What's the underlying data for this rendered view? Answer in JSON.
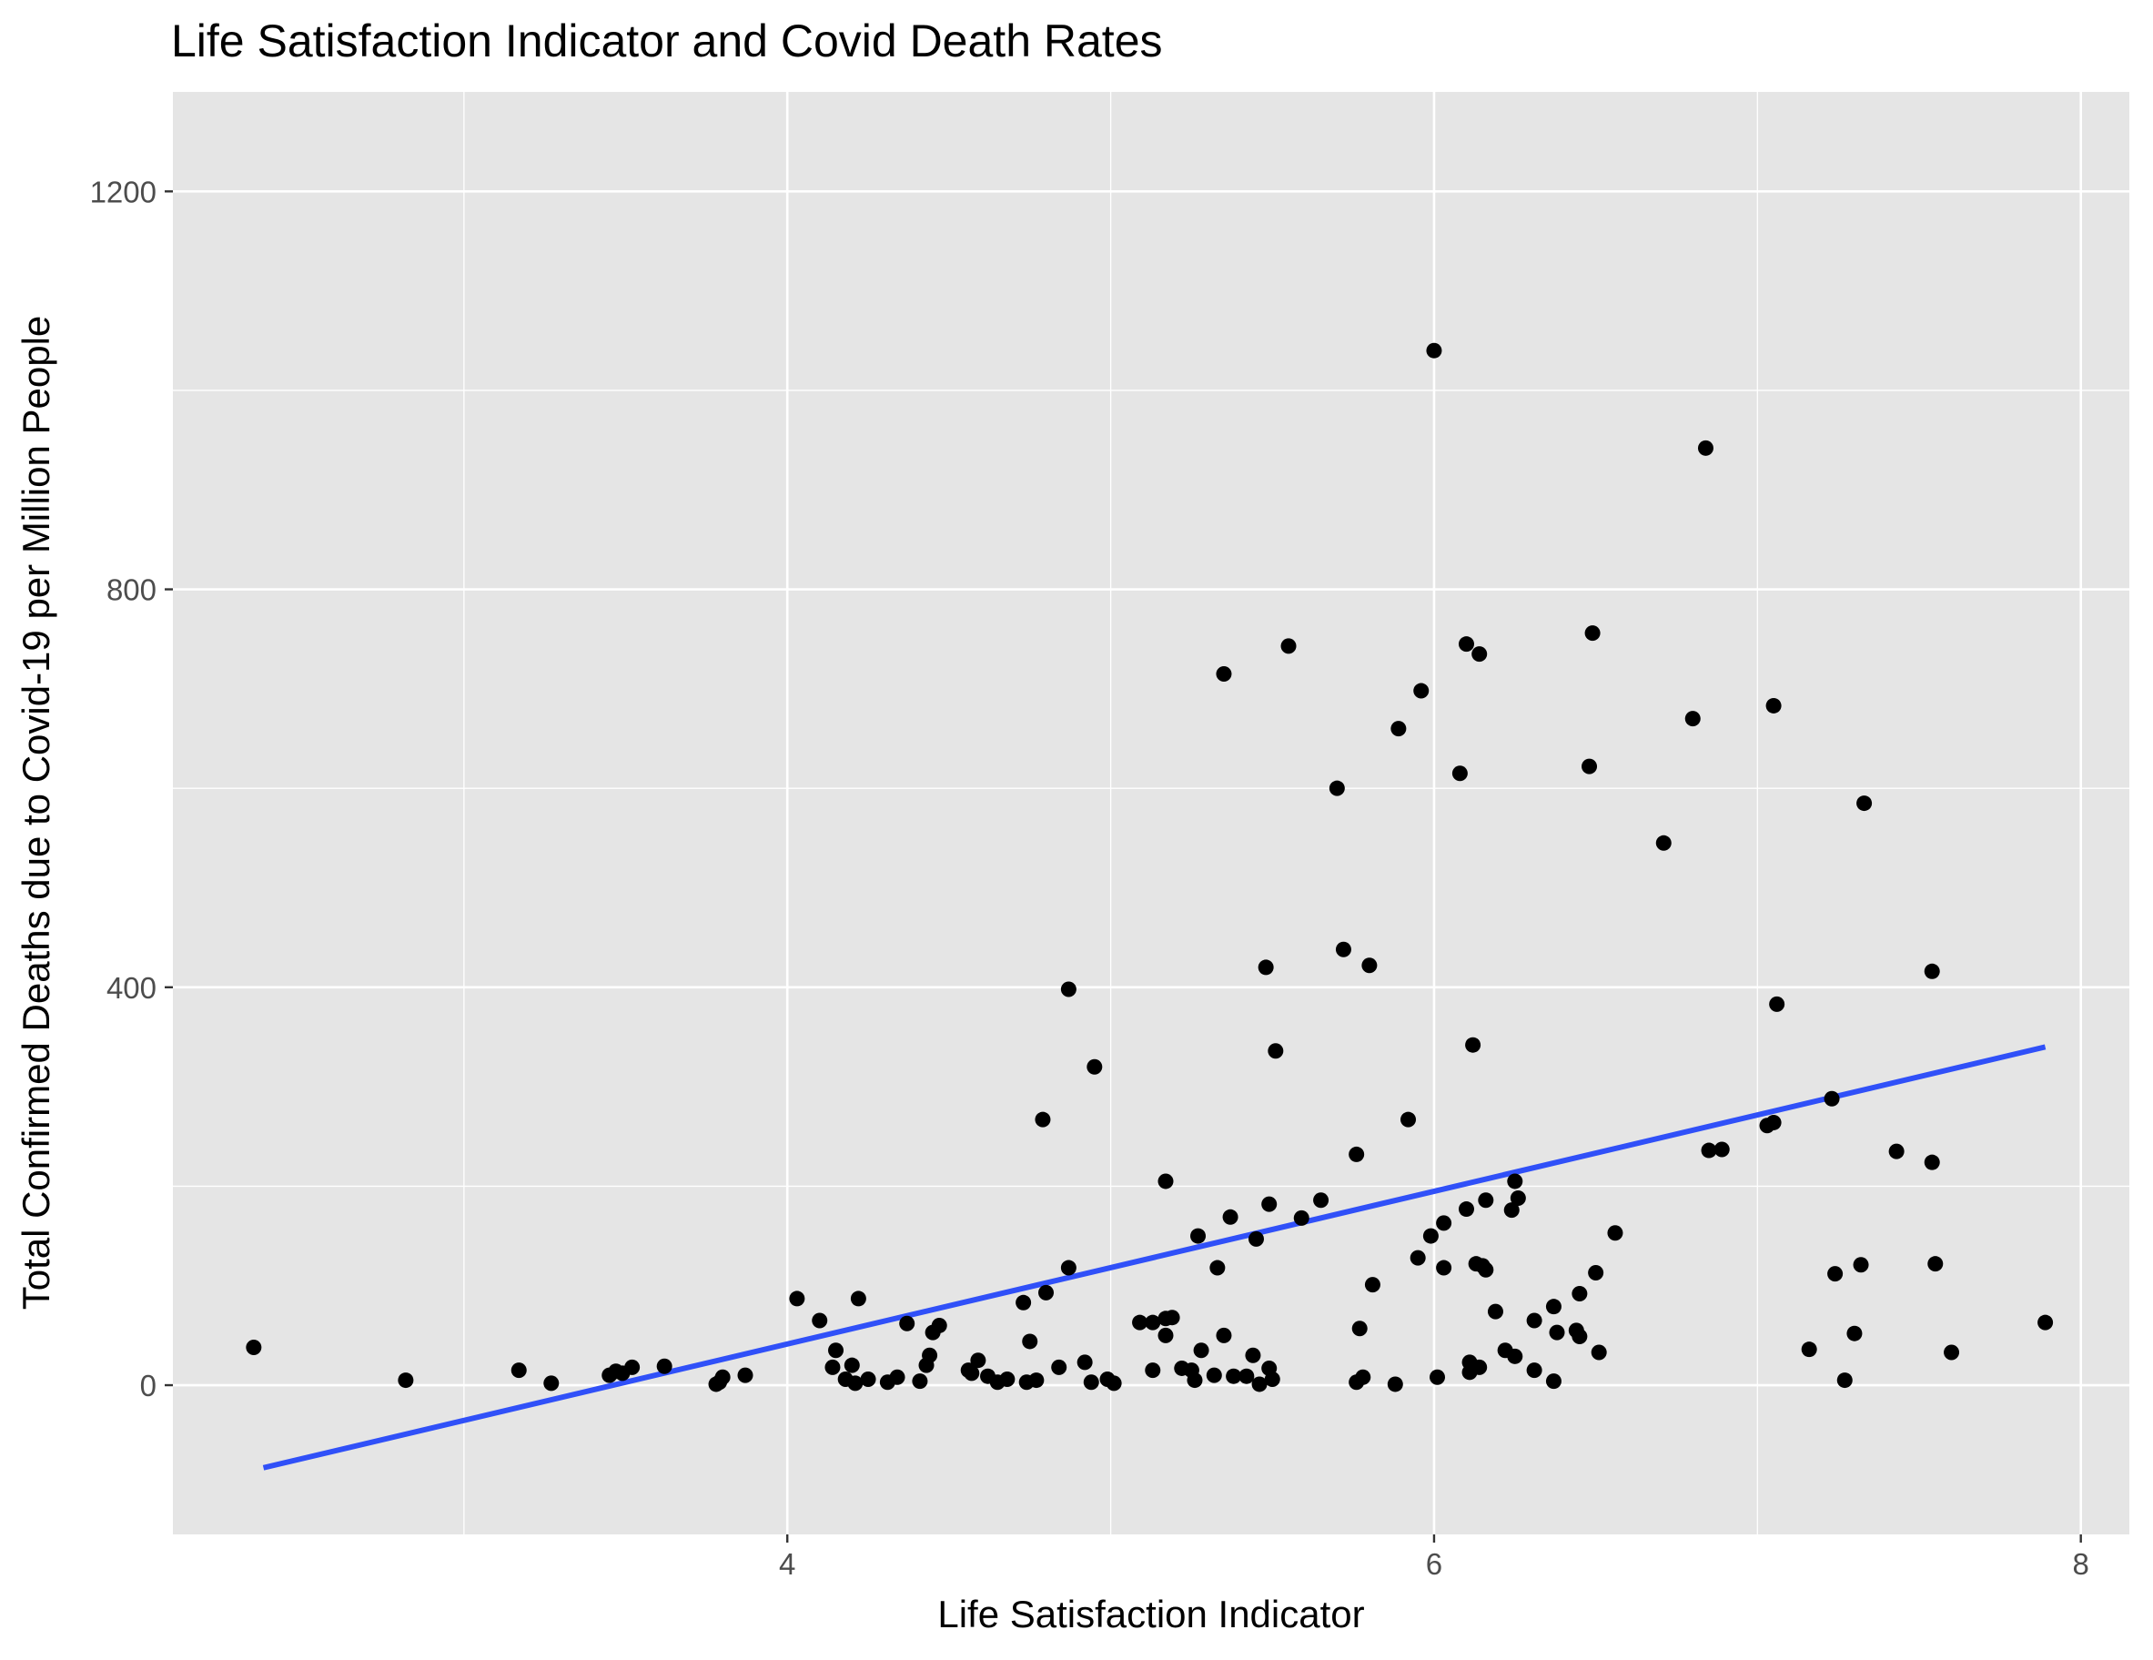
{
  "chart_data": {
    "type": "scatter",
    "title": "Life Satisfaction Indicator and Covid Death Rates",
    "xlabel": "Life Satisfaction Indicator",
    "ylabel": "Total Confirmed Deaths due to Covid-19 per Million People",
    "xlim": [
      2.1,
      8.15
    ],
    "ylim": [
      -150,
      1300
    ],
    "x_ticks": [
      4,
      6,
      8
    ],
    "y_ticks": [
      0,
      400,
      800,
      1200
    ],
    "x_tick_labels": [
      "4",
      "6",
      "8"
    ],
    "y_tick_labels": [
      "0",
      "400",
      "800",
      "1200"
    ],
    "grid": true,
    "colors": {
      "panel": "#E5E5E5",
      "grid": "#FFFFFF",
      "points": "#000000",
      "fit_line": "#3050F8"
    },
    "fit_line": {
      "x": [
        2.38,
        7.89
      ],
      "y": [
        -83,
        340
      ]
    },
    "points": [
      {
        "x": 2.35,
        "y": 38
      },
      {
        "x": 2.82,
        "y": 5
      },
      {
        "x": 3.17,
        "y": 15
      },
      {
        "x": 3.27,
        "y": 2
      },
      {
        "x": 3.45,
        "y": 10
      },
      {
        "x": 3.47,
        "y": 14
      },
      {
        "x": 3.49,
        "y": 12
      },
      {
        "x": 3.52,
        "y": 18
      },
      {
        "x": 3.62,
        "y": 19
      },
      {
        "x": 3.78,
        "y": 1
      },
      {
        "x": 3.79,
        "y": 3
      },
      {
        "x": 3.8,
        "y": 8
      },
      {
        "x": 3.87,
        "y": 10
      },
      {
        "x": 4.03,
        "y": 87
      },
      {
        "x": 4.1,
        "y": 65
      },
      {
        "x": 4.14,
        "y": 18
      },
      {
        "x": 4.15,
        "y": 35
      },
      {
        "x": 4.18,
        "y": 6
      },
      {
        "x": 4.2,
        "y": 20
      },
      {
        "x": 4.21,
        "y": 2
      },
      {
        "x": 4.22,
        "y": 87
      },
      {
        "x": 4.25,
        "y": 6
      },
      {
        "x": 4.31,
        "y": 3
      },
      {
        "x": 4.34,
        "y": 8
      },
      {
        "x": 4.37,
        "y": 62
      },
      {
        "x": 4.41,
        "y": 4
      },
      {
        "x": 4.43,
        "y": 20
      },
      {
        "x": 4.44,
        "y": 30
      },
      {
        "x": 4.45,
        "y": 53
      },
      {
        "x": 4.47,
        "y": 60
      },
      {
        "x": 4.56,
        "y": 15
      },
      {
        "x": 4.57,
        "y": 12
      },
      {
        "x": 4.59,
        "y": 25
      },
      {
        "x": 4.62,
        "y": 9
      },
      {
        "x": 4.65,
        "y": 3
      },
      {
        "x": 4.68,
        "y": 6
      },
      {
        "x": 4.73,
        "y": 83
      },
      {
        "x": 4.74,
        "y": 3
      },
      {
        "x": 4.75,
        "y": 44
      },
      {
        "x": 4.77,
        "y": 5
      },
      {
        "x": 4.79,
        "y": 267
      },
      {
        "x": 4.8,
        "y": 93
      },
      {
        "x": 4.84,
        "y": 18
      },
      {
        "x": 4.87,
        "y": 398
      },
      {
        "x": 4.87,
        "y": 118
      },
      {
        "x": 4.92,
        "y": 23
      },
      {
        "x": 4.94,
        "y": 3
      },
      {
        "x": 4.95,
        "y": 320
      },
      {
        "x": 4.99,
        "y": 6
      },
      {
        "x": 5.01,
        "y": 2
      },
      {
        "x": 5.09,
        "y": 63
      },
      {
        "x": 5.13,
        "y": 63
      },
      {
        "x": 5.13,
        "y": 15
      },
      {
        "x": 5.17,
        "y": 205
      },
      {
        "x": 5.17,
        "y": 50
      },
      {
        "x": 5.17,
        "y": 67
      },
      {
        "x": 5.19,
        "y": 68
      },
      {
        "x": 5.22,
        "y": 17
      },
      {
        "x": 5.25,
        "y": 15
      },
      {
        "x": 5.26,
        "y": 5
      },
      {
        "x": 5.27,
        "y": 150
      },
      {
        "x": 5.28,
        "y": 35
      },
      {
        "x": 5.32,
        "y": 10
      },
      {
        "x": 5.33,
        "y": 118
      },
      {
        "x": 5.35,
        "y": 50
      },
      {
        "x": 5.35,
        "y": 715
      },
      {
        "x": 5.37,
        "y": 169
      },
      {
        "x": 5.38,
        "y": 9
      },
      {
        "x": 5.42,
        "y": 9
      },
      {
        "x": 5.44,
        "y": 30
      },
      {
        "x": 5.45,
        "y": 147
      },
      {
        "x": 5.46,
        "y": 1
      },
      {
        "x": 5.48,
        "y": 420
      },
      {
        "x": 5.49,
        "y": 182
      },
      {
        "x": 5.49,
        "y": 17
      },
      {
        "x": 5.5,
        "y": 6
      },
      {
        "x": 5.51,
        "y": 336
      },
      {
        "x": 5.55,
        "y": 743
      },
      {
        "x": 5.59,
        "y": 168
      },
      {
        "x": 5.65,
        "y": 186
      },
      {
        "x": 5.7,
        "y": 600
      },
      {
        "x": 5.72,
        "y": 438
      },
      {
        "x": 5.76,
        "y": 232
      },
      {
        "x": 5.76,
        "y": 3
      },
      {
        "x": 5.77,
        "y": 57
      },
      {
        "x": 5.78,
        "y": 8
      },
      {
        "x": 5.8,
        "y": 422
      },
      {
        "x": 5.81,
        "y": 101
      },
      {
        "x": 5.88,
        "y": 1
      },
      {
        "x": 5.89,
        "y": 660
      },
      {
        "x": 5.92,
        "y": 267
      },
      {
        "x": 5.95,
        "y": 128
      },
      {
        "x": 5.96,
        "y": 698
      },
      {
        "x": 5.99,
        "y": 150
      },
      {
        "x": 6.0,
        "y": 1040
      },
      {
        "x": 6.01,
        "y": 8
      },
      {
        "x": 6.03,
        "y": 163
      },
      {
        "x": 6.03,
        "y": 118
      },
      {
        "x": 6.08,
        "y": 615
      },
      {
        "x": 6.1,
        "y": 177
      },
      {
        "x": 6.1,
        "y": 745
      },
      {
        "x": 6.11,
        "y": 23
      },
      {
        "x": 6.11,
        "y": 13
      },
      {
        "x": 6.12,
        "y": 342
      },
      {
        "x": 6.13,
        "y": 122
      },
      {
        "x": 6.14,
        "y": 18
      },
      {
        "x": 6.15,
        "y": 120
      },
      {
        "x": 6.16,
        "y": 116
      },
      {
        "x": 6.16,
        "y": 186
      },
      {
        "x": 6.14,
        "y": 735
      },
      {
        "x": 6.19,
        "y": 74
      },
      {
        "x": 6.22,
        "y": 35
      },
      {
        "x": 6.24,
        "y": 176
      },
      {
        "x": 6.25,
        "y": 29
      },
      {
        "x": 6.25,
        "y": 205
      },
      {
        "x": 6.26,
        "y": 188
      },
      {
        "x": 6.31,
        "y": 65
      },
      {
        "x": 6.31,
        "y": 15
      },
      {
        "x": 6.37,
        "y": 4
      },
      {
        "x": 6.37,
        "y": 79
      },
      {
        "x": 6.38,
        "y": 53
      },
      {
        "x": 6.44,
        "y": 55
      },
      {
        "x": 6.45,
        "y": 92
      },
      {
        "x": 6.45,
        "y": 49
      },
      {
        "x": 6.48,
        "y": 622
      },
      {
        "x": 6.49,
        "y": 756
      },
      {
        "x": 6.5,
        "y": 113
      },
      {
        "x": 6.51,
        "y": 33
      },
      {
        "x": 6.56,
        "y": 153
      },
      {
        "x": 6.71,
        "y": 545
      },
      {
        "x": 6.8,
        "y": 670
      },
      {
        "x": 6.84,
        "y": 942
      },
      {
        "x": 6.85,
        "y": 236
      },
      {
        "x": 6.89,
        "y": 237
      },
      {
        "x": 7.03,
        "y": 261
      },
      {
        "x": 7.05,
        "y": 683
      },
      {
        "x": 7.05,
        "y": 264
      },
      {
        "x": 7.06,
        "y": 383
      },
      {
        "x": 7.16,
        "y": 36
      },
      {
        "x": 7.23,
        "y": 288
      },
      {
        "x": 7.24,
        "y": 112
      },
      {
        "x": 7.27,
        "y": 5
      },
      {
        "x": 7.3,
        "y": 52
      },
      {
        "x": 7.32,
        "y": 121
      },
      {
        "x": 7.33,
        "y": 585
      },
      {
        "x": 7.43,
        "y": 235
      },
      {
        "x": 7.54,
        "y": 416
      },
      {
        "x": 7.54,
        "y": 224
      },
      {
        "x": 7.55,
        "y": 122
      },
      {
        "x": 7.6,
        "y": 33
      },
      {
        "x": 7.89,
        "y": 63
      }
    ]
  }
}
